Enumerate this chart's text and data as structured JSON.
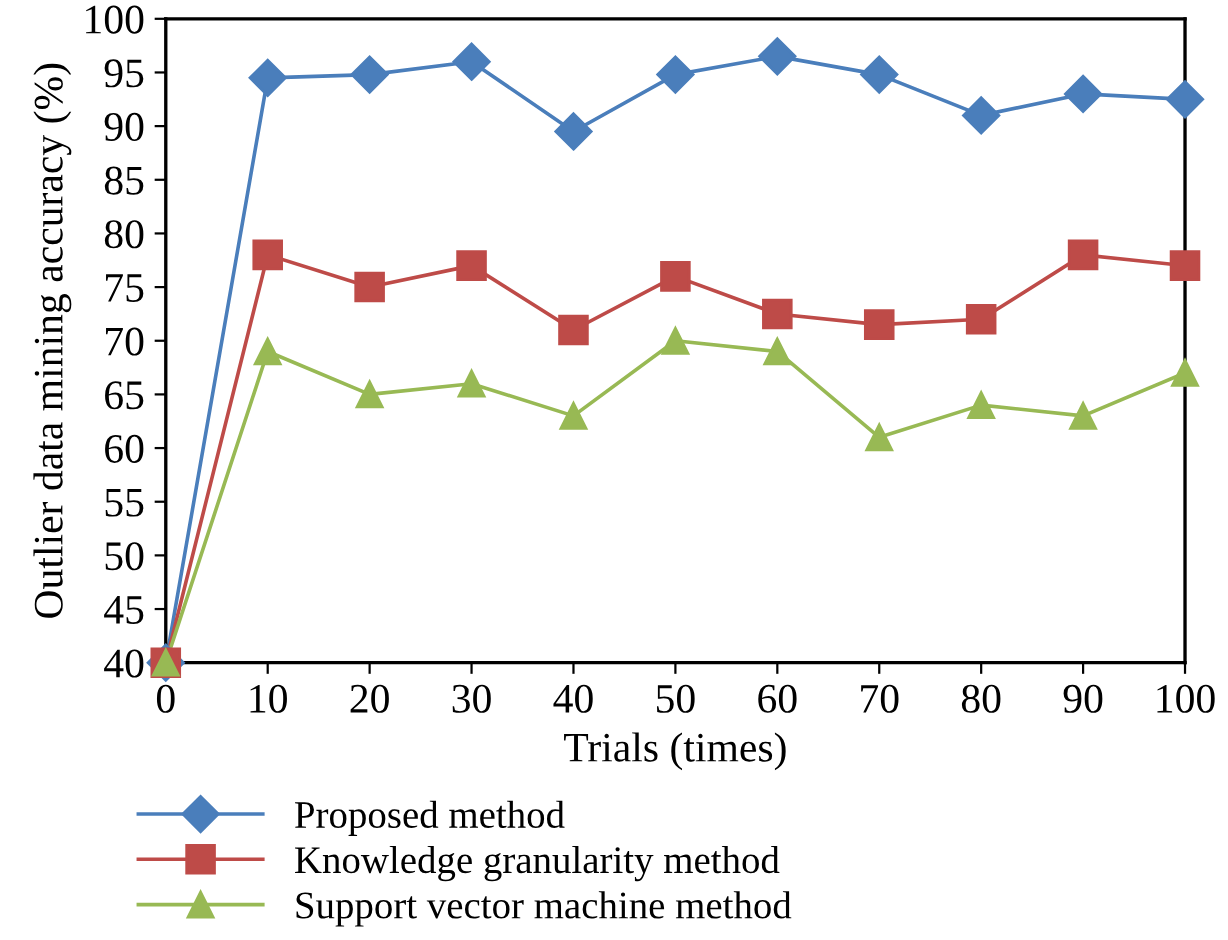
{
  "chart_data": {
    "type": "line",
    "xlabel": "Trials (times)",
    "ylabel": "Outlier data mining accuracy (%)",
    "x": [
      0,
      10,
      20,
      30,
      40,
      50,
      60,
      70,
      80,
      90,
      100
    ],
    "xlim": [
      0,
      100
    ],
    "xticks": [
      0,
      10,
      20,
      30,
      40,
      50,
      60,
      70,
      80,
      90,
      100
    ],
    "ylim": [
      40,
      100
    ],
    "yticks": [
      40,
      45,
      50,
      55,
      60,
      65,
      70,
      75,
      80,
      85,
      90,
      95,
      100
    ],
    "grid": false,
    "legend": "bottom",
    "line_style": "solid",
    "series": [
      {
        "name": "Proposed method",
        "color": "#4a7ebb",
        "marker": "diamond",
        "values": [
          40,
          94.5,
          94.8,
          96,
          89.5,
          94.8,
          96.5,
          94.8,
          91,
          93,
          92.5
        ]
      },
      {
        "name": "Knowledge granularity method",
        "color": "#be4b48",
        "marker": "square",
        "values": [
          40,
          78,
          75,
          77,
          71,
          76,
          72.5,
          71.5,
          72,
          78,
          77
        ]
      },
      {
        "name": "Support vector machine method",
        "color": "#98b954",
        "marker": "triangle",
        "values": [
          40,
          69,
          65,
          66,
          63,
          70,
          69,
          61,
          64,
          63,
          67
        ]
      }
    ]
  }
}
